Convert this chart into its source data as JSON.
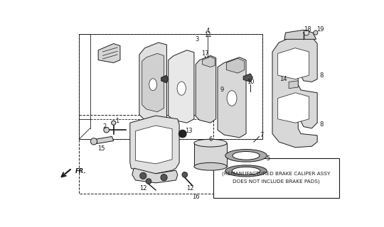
{
  "bg_color": "#ffffff",
  "line_color": "#1a1a1a",
  "note_text1": "(REMANUFACTURED BRAKE CALIPER ASSY",
  "note_text2": "DOES NOT INCLUDE BRAKE PADS)",
  "fr_text": "FR."
}
